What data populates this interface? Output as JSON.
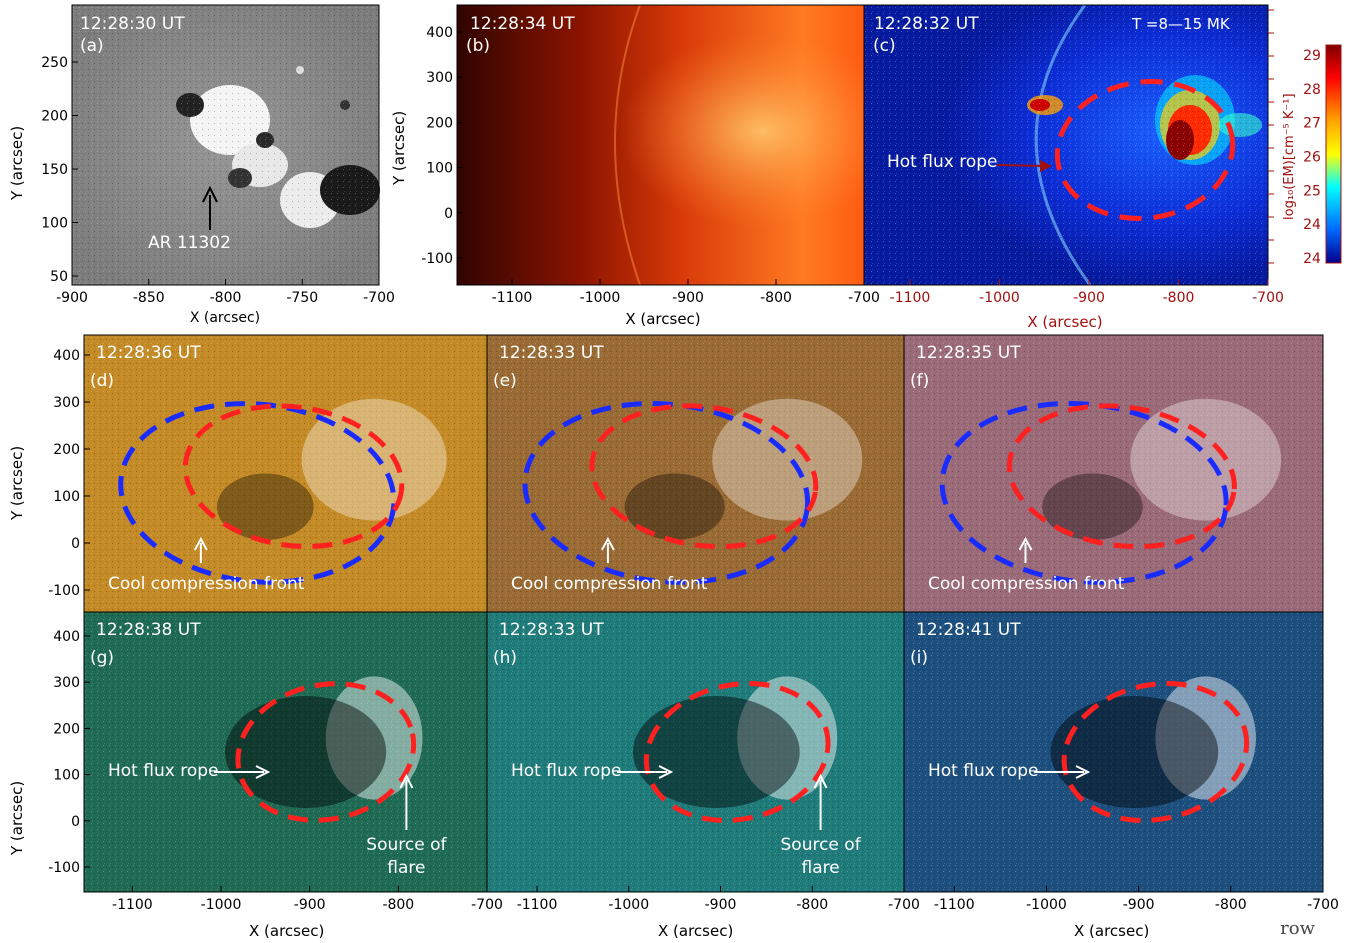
{
  "panels": {
    "a": {
      "time": "12:28:30 UT",
      "label": "(a)",
      "annotation": "AR 11302",
      "x_ticks": [
        "-900",
        "-850",
        "-800",
        "-750",
        "-700"
      ],
      "y_ticks": [
        "50",
        "100",
        "150",
        "200",
        "250"
      ],
      "xlabel": "X (arcsec)",
      "ylabel": "Y (arcsec)"
    },
    "b": {
      "time": "12:28:34 UT",
      "label": "(b)",
      "x_ticks": [
        "-1100",
        "-1000",
        "-900",
        "-800",
        "-700"
      ],
      "y_ticks": [
        "-100",
        "0",
        "100",
        "200",
        "300",
        "400"
      ],
      "xlabel": "X (arcsec)",
      "ylabel": "Y (arcsec)"
    },
    "c": {
      "time": "12:28:32 UT",
      "label": "(c)",
      "temperature": "T =8—15 MK",
      "annotation": "Hot flux rope",
      "x_ticks": [
        "-1100",
        "-1000",
        "-900",
        "-800",
        "-700"
      ],
      "xlabel": "X (arcsec)"
    },
    "d": {
      "time": "12:28:36 UT",
      "label": "(d)",
      "annotation": "Cool compression front"
    },
    "e": {
      "time": "12:28:33 UT",
      "label": "(e)",
      "annotation": "Cool compression front"
    },
    "f": {
      "time": "12:28:35 UT",
      "label": "(f)",
      "annotation": "Cool compression front"
    },
    "g": {
      "time": "12:28:38 UT",
      "label": "(g)",
      "annotation": "Hot flux rope",
      "annotation2_line1": "Source of",
      "annotation2_line2": "flare"
    },
    "h": {
      "time": "12:28:33 UT",
      "label": "(h)",
      "annotation": "Hot flux rope",
      "annotation2_line1": "Source of",
      "annotation2_line2": "flare"
    },
    "i": {
      "time": "12:28:41 UT",
      "label": "(i)",
      "annotation": "Hot flux rope"
    }
  },
  "grid": {
    "x_ticks": [
      "-1100",
      "-1000",
      "-900",
      "-800",
      "-700"
    ],
    "y_ticks": [
      "-100",
      "0",
      "100",
      "200",
      "300",
      "400"
    ],
    "xlabel": "X (arcsec)",
    "ylabel": "Y (arcsec)"
  },
  "colorbar": {
    "ticks": [
      "29",
      "28",
      "27",
      "26",
      "25",
      "24",
      "24"
    ],
    "label": "log₁₀(EM)[cm⁻⁵ K⁻¹]",
    "colors": [
      "#800000",
      "#ff0000",
      "#ffa500",
      "#ffff00",
      "#00ffff",
      "#0066ff",
      "#00008b"
    ]
  },
  "footer": "row",
  "colors": {
    "flux_rope": "#ff2020",
    "compression_front": "#1a2bff",
    "axis_dark_red": "#a01010",
    "panel_a_bg": "#8a8a8a",
    "panel_b_dark": "#3a0500",
    "panel_b_bright": "#ff8a30",
    "panel_c_bg": "#0a28c8",
    "panel_d_bg": "#c48a26",
    "panel_e_bg": "#9a6a34",
    "panel_f_bg": "#9a6a78",
    "panel_g_bg": "#1e6a52",
    "panel_h_bg": "#1f7a7a",
    "panel_i_bg": "#1c4f7e"
  }
}
